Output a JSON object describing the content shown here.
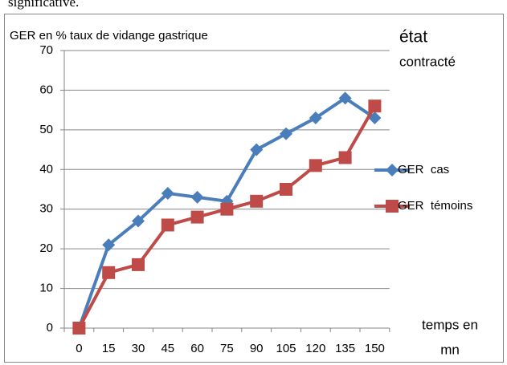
{
  "page_text": "significative.",
  "chart_data": {
    "type": "line",
    "y_label": "GER en % taux de vidange gastrique",
    "annotation_lines": [
      "état",
      "contracté"
    ],
    "x_label_lines": [
      "temps en",
      "mn"
    ],
    "categories": [
      "0",
      "15",
      "30",
      "45",
      "60",
      "75",
      "90",
      "105",
      "120",
      "135",
      "150"
    ],
    "series": [
      {
        "name": "GER  cas",
        "color": "#4a7ebb",
        "marker": "diamond",
        "values": [
          0,
          21,
          27,
          34,
          33,
          32,
          45,
          49,
          53,
          58,
          53
        ]
      },
      {
        "name": "GER  témoins",
        "color": "#be4b48",
        "marker": "square",
        "values": [
          0,
          14,
          16,
          26,
          28,
          30,
          32,
          35,
          41,
          43,
          56
        ]
      }
    ],
    "ylim": [
      0,
      70
    ],
    "yticks": [
      0,
      10,
      20,
      30,
      40,
      50,
      60,
      70
    ],
    "grid": true,
    "legend": "right"
  }
}
